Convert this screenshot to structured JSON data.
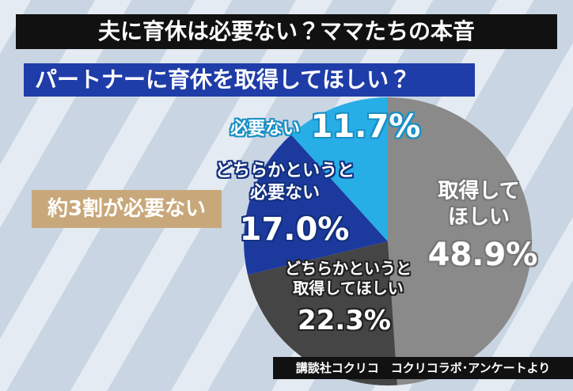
{
  "chart_data": {
    "type": "pie",
    "title": "夫に育休は必要ない？ママたちの本音",
    "subtitle": "パートナーに育休を取得してほしい？",
    "annotation": "約3割が必要ない",
    "source": "講談社コクリコ　コクリコラボ･アンケートより",
    "categories": [
      "取得して\nほしい",
      "どちらかというと\n取得してほしい",
      "どちらかというと\n必要ない",
      "必要ない"
    ],
    "values": [
      48.9,
      22.3,
      17.0,
      11.7
    ],
    "value_labels": [
      "48.9%",
      "22.3%",
      "17.0%",
      "11.7%"
    ],
    "colors": [
      "#8a8a8a",
      "#454545",
      "#1c3a9e",
      "#27aee6"
    ]
  }
}
